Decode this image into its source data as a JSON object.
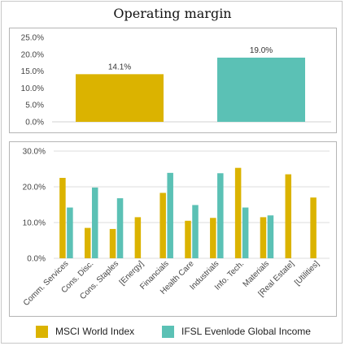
{
  "title": "Operating margin",
  "colors": {
    "msci": "#dbb300",
    "ifsl": "#5bc1b5"
  },
  "legend": {
    "msci": "MSCI World Index",
    "ifsl": "IFSL Evenlode Global Income"
  },
  "chart_data": [
    {
      "type": "bar",
      "title": "Operating margin",
      "categories": [
        "MSCI World Index",
        "IFSL Evenlode Global Income"
      ],
      "values": [
        14.1,
        19.0
      ],
      "data_labels": [
        "14.1%",
        "19.0%"
      ],
      "ylim": [
        0,
        25
      ],
      "yticks": [
        "0.0%",
        "5.0%",
        "10.0%",
        "15.0%",
        "20.0%",
        "25.0%"
      ],
      "grid": false
    },
    {
      "type": "bar",
      "categories": [
        "Comm. Services",
        "Cons. Disc.",
        "Cons. Staples",
        "[Energy]",
        "Financials",
        "Health Care",
        "Industrials",
        "Info. Tech.",
        "Materials",
        "[Real Estate]",
        "[Utilities]"
      ],
      "series": [
        {
          "name": "MSCI World Index",
          "values": [
            22.5,
            8.5,
            8.2,
            11.5,
            18.3,
            10.5,
            11.3,
            25.3,
            11.5,
            23.5,
            17.0
          ]
        },
        {
          "name": "IFSL Evenlode Global Income",
          "values": [
            14.2,
            19.8,
            16.8,
            null,
            23.9,
            14.9,
            23.8,
            14.2,
            12.0,
            null,
            null
          ]
        }
      ],
      "ylim": [
        0,
        30
      ],
      "yticks": [
        "0.0%",
        "10.0%",
        "20.0%",
        "30.0%"
      ],
      "grid": true,
      "legend_position": "bottom"
    }
  ]
}
